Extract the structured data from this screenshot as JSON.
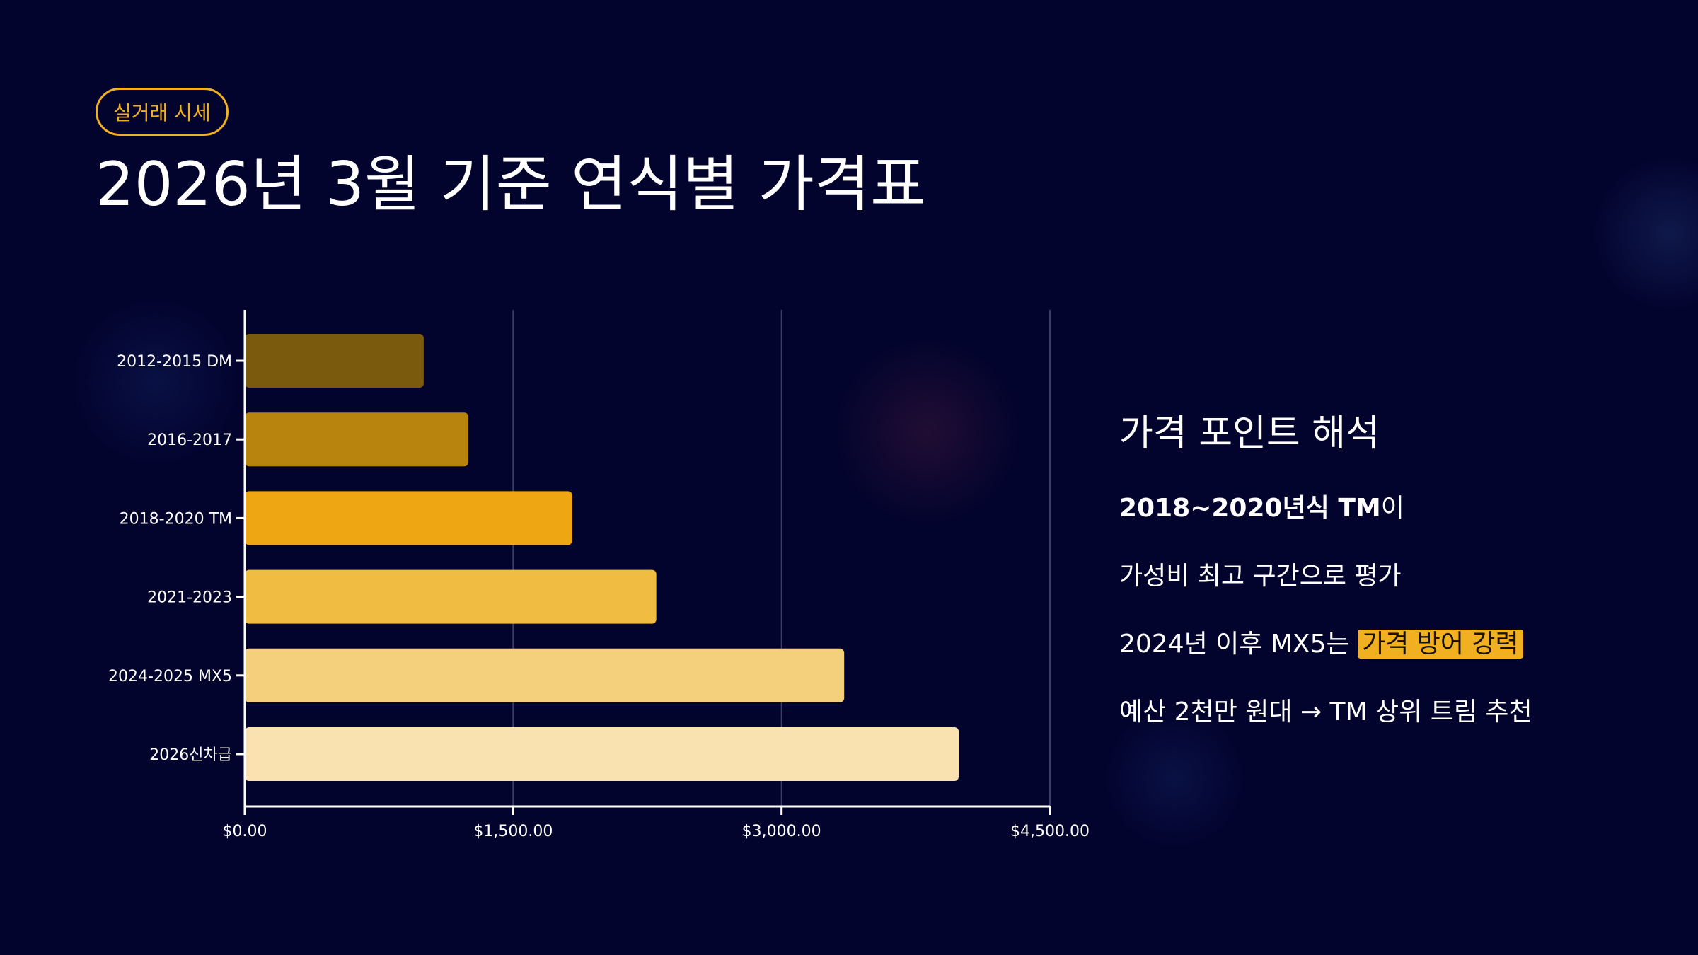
{
  "badge": "실거래 시세",
  "title": "2026년 3월 기준 연식별 가격표",
  "insight": {
    "heading": "가격 포인트 해석",
    "line1_bold": "2018~2020년식 TM",
    "line1_rest": "이",
    "line2": "가성비 최고 구간으로 평가",
    "line3_prefix": "2024년 이후 MX5는 ",
    "line3_highlight": "가격 방어 강력",
    "line4": "예산 2천만 원대 → TM 상위 트림 추천"
  },
  "colors": {
    "background": "#03042e",
    "accent": "#f0b020",
    "bars": [
      "#7a5a0c",
      "#b8840e",
      "#eea712",
      "#f1bc42",
      "#f5d07c",
      "#f9e2b0"
    ]
  },
  "chart_data": {
    "type": "bar",
    "orientation": "horizontal",
    "categories": [
      "2012-2015 DM",
      "2016-2017",
      "2018-2020 TM",
      "2021-2023",
      "2024-2025 MX5",
      "2026신차급"
    ],
    "values": [
      1000,
      1250,
      1830,
      2300,
      3350,
      3990
    ],
    "xlim": [
      0,
      4500
    ],
    "xticks": [
      0,
      1500,
      3000,
      4500
    ],
    "xtick_labels": [
      "$0.00",
      "$1,500.00",
      "$3,000.00",
      "$4,500.00"
    ],
    "grid": "vertical",
    "xlabel": "",
    "ylabel": ""
  }
}
